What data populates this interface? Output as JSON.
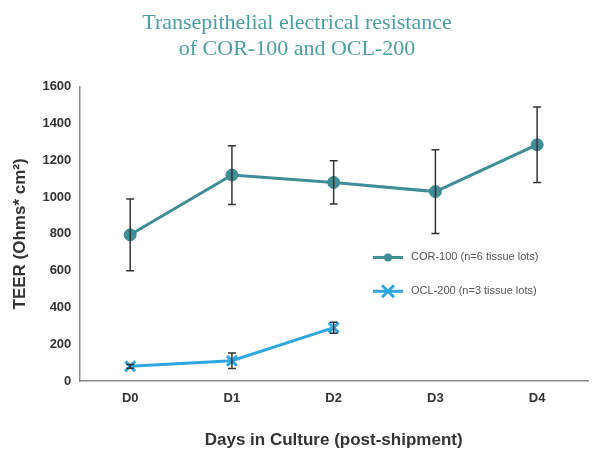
{
  "chart_data": {
    "type": "line",
    "title": [
      "Transepithelial electrical resistance",
      "of COR-100 and OCL-200"
    ],
    "x_label": "Days in Culture (post-shipment)",
    "y_label": "TEER (Ohms* cm²)",
    "categories": [
      "D0",
      "D1",
      "D2",
      "D3",
      "D4"
    ],
    "series": [
      {
        "name": "COR-100 (n=6 tissue lots)",
        "color": "#3f8d96",
        "marker": "circle",
        "line_style": "solid",
        "values": [
          795,
          1120,
          1080,
          1030,
          1285
        ],
        "errors": [
          195,
          160,
          118,
          228,
          205
        ]
      },
      {
        "name": "OCL-200 (n=3 tissue lots)",
        "color": "#2ea6e0",
        "marker": "cross",
        "line_style": "solid",
        "values": [
          80,
          110,
          290,
          null,
          null
        ],
        "errors": [
          10,
          42,
          30,
          null,
          null
        ]
      }
    ],
    "ylim": [
      0,
      1600
    ],
    "yticks": [
      0,
      200,
      400,
      600,
      800,
      1000,
      1200,
      1400,
      1600
    ],
    "grid": false,
    "legend": "right"
  }
}
